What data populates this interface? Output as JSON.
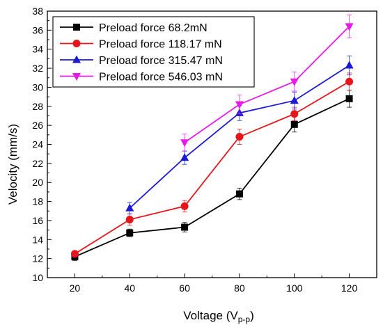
{
  "chart_data": {
    "type": "line",
    "xlabel": "Voltage (V",
    "xlabel_sub": "p-p",
    "xlabel_close": ")",
    "ylabel": "Velocity (mm/s)",
    "x": [
      20,
      40,
      60,
      80,
      100,
      120
    ],
    "xlim": [
      10,
      130
    ],
    "ylim": [
      10,
      38
    ],
    "x_ticks": [
      20,
      40,
      60,
      80,
      100,
      120
    ],
    "y_ticks": [
      10,
      12,
      14,
      16,
      18,
      20,
      22,
      24,
      26,
      28,
      30,
      32,
      34,
      36,
      38
    ],
    "grid": false,
    "legend_position": "top-left",
    "series": [
      {
        "name": "Preload force 68.2mN",
        "color": "#000000",
        "marker": "square",
        "x": [
          20,
          40,
          60,
          80,
          100,
          120
        ],
        "values": [
          12.2,
          14.7,
          15.3,
          18.8,
          26.1,
          28.8
        ],
        "errors": [
          0.4,
          0.4,
          0.5,
          0.6,
          0.8,
          0.9
        ]
      },
      {
        "name": "Preload force 118.17 mN",
        "color": "#e8141b",
        "marker": "circle",
        "x": [
          20,
          40,
          60,
          80,
          100,
          120
        ],
        "values": [
          12.5,
          16.1,
          17.5,
          24.8,
          27.2,
          30.6
        ],
        "errors": [
          0.3,
          0.6,
          0.6,
          0.8,
          0.7,
          0.9
        ]
      },
      {
        "name": "Preload force 315.47 mN",
        "color": "#1a1ad6",
        "marker": "triangle-up",
        "x": [
          40,
          60,
          80,
          100,
          120
        ],
        "values": [
          17.3,
          22.6,
          27.3,
          28.6,
          32.3
        ],
        "errors": [
          0.6,
          0.7,
          0.8,
          0.9,
          1.0
        ]
      },
      {
        "name": "Preload force 546.03 mN",
        "color": "#e81ae8",
        "marker": "triangle-down",
        "x": [
          60,
          80,
          100,
          120
        ],
        "values": [
          24.2,
          28.2,
          30.6,
          36.4
        ],
        "errors": [
          0.9,
          1.0,
          1.0,
          1.2
        ]
      }
    ]
  }
}
